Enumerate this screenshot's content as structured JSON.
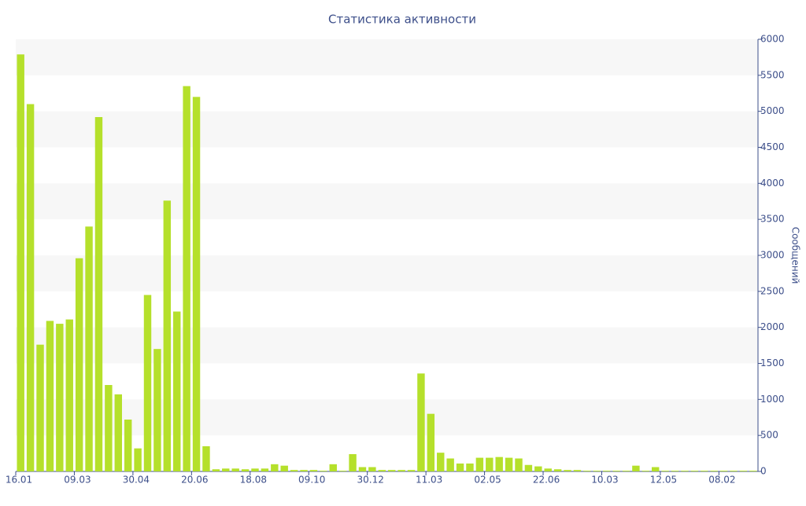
{
  "chart_data": {
    "type": "bar",
    "title": "Статистика активности",
    "y_label": "Сообщений",
    "categories": [
      "16.01",
      null,
      null,
      null,
      null,
      null,
      "09.03",
      null,
      null,
      null,
      null,
      null,
      "30.04",
      null,
      null,
      null,
      null,
      null,
      "20.06",
      null,
      null,
      null,
      null,
      null,
      "18.08",
      null,
      null,
      null,
      null,
      null,
      "09.10",
      null,
      null,
      null,
      null,
      null,
      "30.12",
      null,
      null,
      null,
      null,
      null,
      "11.03",
      null,
      null,
      null,
      null,
      null,
      "02.05",
      null,
      null,
      null,
      null,
      null,
      "22.06",
      null,
      null,
      null,
      null,
      null,
      "10.03",
      null,
      null,
      null,
      null,
      null,
      "12.05",
      null,
      null,
      null,
      null,
      null,
      "08.02",
      null,
      null,
      null
    ],
    "values": [
      5790,
      5100,
      1760,
      2090,
      2050,
      2110,
      2960,
      3400,
      4920,
      1200,
      1070,
      720,
      320,
      2450,
      1700,
      3760,
      2220,
      5350,
      5200,
      350,
      30,
      40,
      40,
      30,
      40,
      40,
      100,
      80,
      20,
      20,
      20,
      10,
      100,
      10,
      240,
      60,
      60,
      20,
      20,
      20,
      20,
      1360,
      800,
      260,
      180,
      110,
      110,
      190,
      190,
      200,
      190,
      180,
      90,
      70,
      40,
      30,
      20,
      20,
      10,
      10,
      10,
      10,
      10,
      80,
      10,
      60,
      10,
      10,
      10,
      10,
      10,
      10,
      10,
      10,
      10,
      10
    ],
    "color": "#b5e02b",
    "ylim": [
      0,
      6000
    ],
    "yticks": [
      0,
      500,
      1000,
      1500,
      2000,
      2500,
      3000,
      3500,
      4000,
      4500,
      5000,
      5500,
      6000
    ],
    "grid": true,
    "y_axis_side": "right"
  }
}
